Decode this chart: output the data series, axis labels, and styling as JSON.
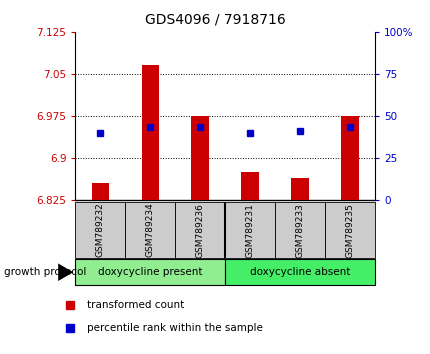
{
  "title": "GDS4096 / 7918716",
  "samples": [
    "GSM789232",
    "GSM789234",
    "GSM789236",
    "GSM789231",
    "GSM789233",
    "GSM789235"
  ],
  "red_values": [
    6.855,
    7.065,
    6.975,
    6.875,
    6.865,
    6.975
  ],
  "blue_values": [
    6.945,
    6.955,
    6.955,
    6.945,
    6.948,
    6.955
  ],
  "ylim_left": [
    6.825,
    7.125
  ],
  "ylim_right": [
    0,
    100
  ],
  "left_ticks": [
    6.825,
    6.9,
    6.975,
    7.05,
    7.125
  ],
  "right_ticks": [
    0,
    25,
    50,
    75,
    100
  ],
  "left_tick_labels": [
    "6.825",
    "6.9",
    "6.975",
    "7.05",
    "7.125"
  ],
  "right_tick_labels": [
    "0",
    "25",
    "50",
    "75",
    "100%"
  ],
  "left_color": "#cc0000",
  "right_color": "#0000cc",
  "bar_color": "#cc0000",
  "dot_color": "#0000cc",
  "group0_label": "doxycycline present",
  "group1_label": "doxycycline absent",
  "group0_color": "#90ee90",
  "group1_color": "#44ee66",
  "group_label": "growth protocol",
  "legend_label0": "transformed count",
  "legend_label1": "percentile rank within the sample",
  "bar_bottom": 6.825,
  "bar_width": 0.35
}
